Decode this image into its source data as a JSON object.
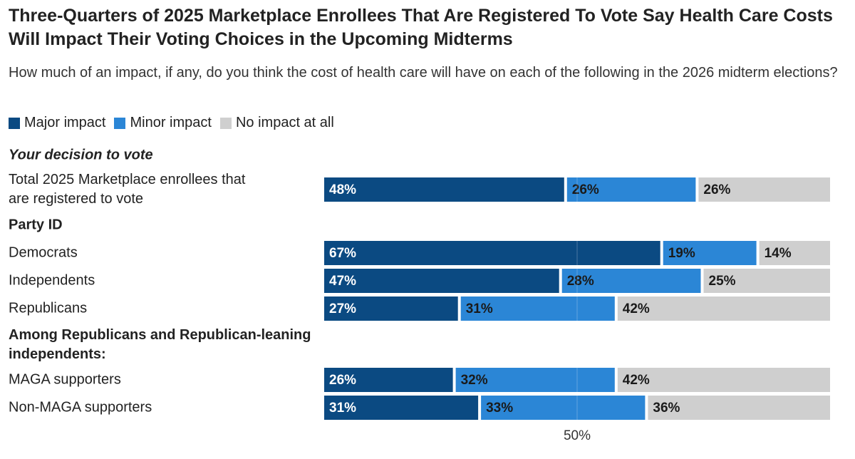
{
  "chart_data": {
    "type": "bar",
    "orientation": "horizontal-stacked",
    "title": "Three-Quarters of 2025 Marketplace Enrollees That Are Registered To Vote Say Health Care Costs Will Impact Their Voting Choices in the Upcoming Midterms",
    "subtitle": "How much of an impact, if any, do you think the cost of health care will have on each of the following in the 2026 midterm elections?",
    "legend": [
      {
        "name": "Major impact",
        "color": "#0b4a82"
      },
      {
        "name": "Minor impact",
        "color": "#2b86d6"
      },
      {
        "name": "No impact at all",
        "color": "#cfcfcf"
      }
    ],
    "xlim": [
      0,
      100
    ],
    "reference_tick": {
      "value": 50,
      "label": "50%"
    },
    "rows": [
      {
        "kind": "section",
        "label": "Your decision to vote",
        "style": "bold-italic"
      },
      {
        "kind": "bar",
        "label": "Total 2025 Marketplace enrollees that are registered to vote",
        "values": [
          48,
          26,
          26
        ],
        "value_labels": [
          "48%",
          "26%",
          "26%"
        ]
      },
      {
        "kind": "section",
        "label": "Party ID",
        "style": "bold"
      },
      {
        "kind": "bar",
        "label": "Democrats",
        "values": [
          67,
          19,
          14
        ],
        "value_labels": [
          "67%",
          "19%",
          "14%"
        ]
      },
      {
        "kind": "bar",
        "label": "Independents",
        "values": [
          47,
          28,
          25
        ],
        "value_labels": [
          "47%",
          "28%",
          "25%"
        ]
      },
      {
        "kind": "bar",
        "label": "Republicans",
        "values": [
          27,
          31,
          42
        ],
        "value_labels": [
          "27%",
          "31%",
          "42%"
        ]
      },
      {
        "kind": "section",
        "label": "Among Republicans and Republican-leaning independents:",
        "style": "bold"
      },
      {
        "kind": "bar",
        "label": "MAGA supporters",
        "values": [
          26,
          32,
          42
        ],
        "value_labels": [
          "26%",
          "32%",
          "42%"
        ]
      },
      {
        "kind": "bar",
        "label": "Non-MAGA supporters",
        "values": [
          31,
          33,
          36
        ],
        "value_labels": [
          "31%",
          "33%",
          "36%"
        ]
      }
    ]
  }
}
